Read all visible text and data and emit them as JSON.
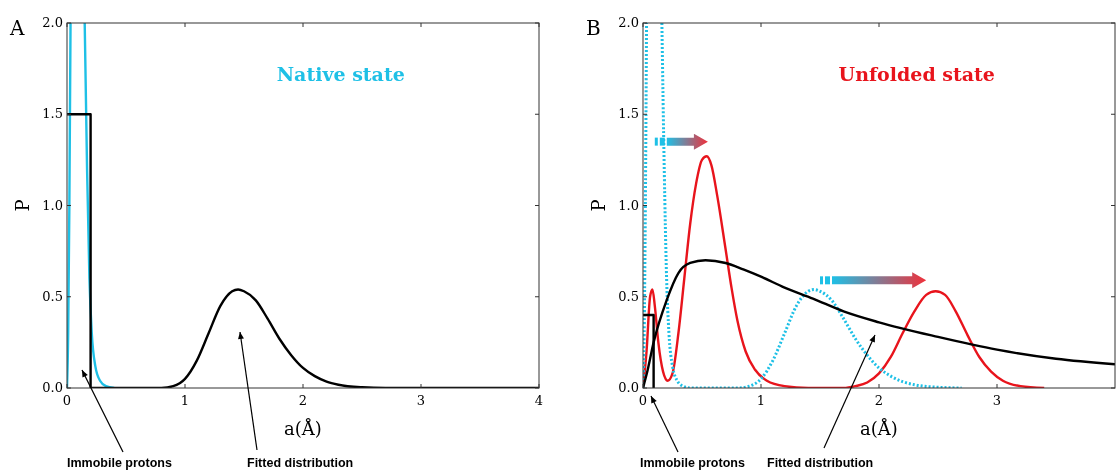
{
  "chart_data": [
    {
      "type": "line",
      "title": "A",
      "subtitle": "Native state",
      "xlabel": "a(Å)",
      "ylabel": "P",
      "xlim": [
        0,
        4
      ],
      "ylim": [
        0,
        2
      ],
      "xticks": [
        0,
        1,
        2,
        3,
        4
      ],
      "yticks": [
        {
          "value": 0,
          "label": "0.0"
        },
        {
          "value": 0.5,
          "label": "0.5"
        },
        {
          "value": 1,
          "label": "1.0"
        },
        {
          "value": 1.5,
          "label": "1.5"
        },
        {
          "value": 2,
          "label": "2.0"
        }
      ],
      "grid": false,
      "series": [
        {
          "color": "#1ec0e6",
          "x": [
            0,
            0.01,
            0.02,
            0.03
          ],
          "values": [
            0,
            0.3,
            1.0,
            2.0
          ]
        },
        {
          "color": "#1ec0e6",
          "x": [
            0.15,
            0.17,
            0.19,
            0.21,
            0.24,
            0.28,
            0.33,
            0.4
          ],
          "values": [
            2.0,
            1.2,
            0.6,
            0.3,
            0.12,
            0.04,
            0.01,
            0
          ]
        },
        {
          "color": "#000000",
          "x": [
            0,
            0.2,
            0.2,
            0.8,
            0.9,
            1.0,
            1.1,
            1.2,
            1.3,
            1.4,
            1.45,
            1.5,
            1.6,
            1.7,
            1.8,
            1.9,
            2.0,
            2.1,
            2.2,
            2.3,
            2.5,
            2.7,
            4
          ],
          "values": [
            1.5,
            1.5,
            0,
            0,
            0.01,
            0.05,
            0.15,
            0.3,
            0.45,
            0.53,
            0.54,
            0.53,
            0.48,
            0.38,
            0.27,
            0.18,
            0.11,
            0.065,
            0.035,
            0.018,
            0.004,
            0,
            0
          ]
        }
      ],
      "annotations": [
        "Immobile protons",
        "Fitted distribution"
      ]
    },
    {
      "type": "line",
      "title": "B",
      "subtitle": "Unfolded state",
      "xlabel": "a(Å)",
      "ylabel": "P",
      "xlim": [
        0,
        4
      ],
      "ylim": [
        0,
        2
      ],
      "xticks": [
        0,
        1,
        2,
        3
      ],
      "yticks": [
        {
          "value": 0,
          "label": "0.0"
        },
        {
          "value": 0.5,
          "label": "0.5"
        },
        {
          "value": 1,
          "label": "1.0"
        },
        {
          "value": 1.5,
          "label": "1.5"
        },
        {
          "value": 2,
          "label": "2.0"
        }
      ],
      "grid": false,
      "series": [
        {
          "color": "#e8141c",
          "x": [
            0,
            0.03,
            0.06,
            0.08,
            0.1,
            0.13,
            0.17,
            0.21,
            0.25,
            0.3,
            0.35,
            0.4,
            0.45,
            0.5,
            0.54,
            0.58,
            0.63,
            0.7,
            0.75,
            0.8,
            0.87,
            0.95,
            1.05,
            1.2,
            1.4,
            1.7,
            1.8,
            1.9,
            2.0,
            2.1,
            2.2,
            2.3,
            2.4,
            2.48,
            2.56,
            2.65,
            2.75,
            2.85,
            2.95,
            3.05,
            3.2,
            3.4
          ],
          "values": [
            0,
            0.2,
            0.5,
            0.54,
            0.45,
            0.25,
            0.09,
            0.04,
            0.08,
            0.3,
            0.6,
            0.9,
            1.12,
            1.25,
            1.27,
            1.22,
            1.05,
            0.76,
            0.55,
            0.37,
            0.2,
            0.1,
            0.04,
            0.01,
            0,
            0,
            0.01,
            0.03,
            0.08,
            0.17,
            0.3,
            0.42,
            0.51,
            0.53,
            0.51,
            0.42,
            0.29,
            0.17,
            0.09,
            0.04,
            0.01,
            0
          ]
        },
        {
          "color": "#1ec0e6",
          "line_style": "dotted",
          "x": [
            0,
            0.01,
            0.02,
            0.03
          ],
          "values": [
            0,
            0.3,
            1.0,
            2.0
          ]
        },
        {
          "color": "#1ec0e6",
          "line_style": "dotted",
          "x": [
            0.16,
            0.18,
            0.2,
            0.22,
            0.25,
            0.29,
            0.34,
            0.4,
            0.8,
            0.9,
            1.0,
            1.1,
            1.2,
            1.3,
            1.4,
            1.45,
            1.5,
            1.6,
            1.7,
            1.8,
            1.9,
            2.0,
            2.1,
            2.2,
            2.3,
            2.5,
            2.7
          ],
          "values": [
            2.0,
            1.2,
            0.6,
            0.3,
            0.12,
            0.04,
            0.01,
            0,
            0,
            0.01,
            0.05,
            0.15,
            0.3,
            0.45,
            0.53,
            0.54,
            0.53,
            0.48,
            0.38,
            0.27,
            0.18,
            0.11,
            0.065,
            0.035,
            0.018,
            0.004,
            0
          ]
        },
        {
          "color": "#000000",
          "x": [
            0,
            0.09,
            0.09
          ],
          "values": [
            0.4,
            0.4,
            0
          ]
        },
        {
          "color": "#000000",
          "x": [
            0,
            0.04,
            0.09,
            0.2,
            0.3,
            0.4,
            0.53,
            0.7,
            0.85,
            1.0,
            1.2,
            1.44,
            1.7,
            2.0,
            2.5,
            3.0,
            3.5,
            4.0
          ],
          "values": [
            0,
            0.1,
            0.25,
            0.48,
            0.63,
            0.685,
            0.7,
            0.685,
            0.65,
            0.61,
            0.55,
            0.49,
            0.42,
            0.36,
            0.28,
            0.21,
            0.16,
            0.13
          ]
        }
      ],
      "annotations": [
        "Immobile protons",
        "Fitted distribution"
      ]
    }
  ]
}
